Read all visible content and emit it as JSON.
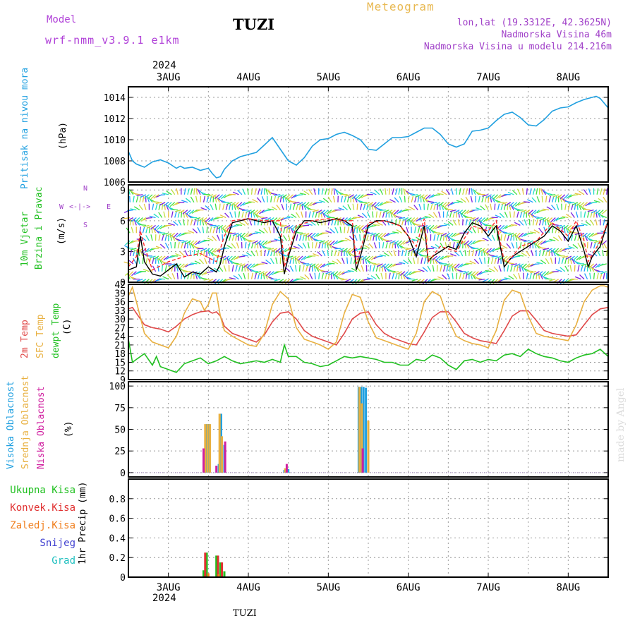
{
  "header": {
    "model_label": "Model",
    "model_name": "wrf-nmm_v3.9.1 e1km",
    "station": "TUZI",
    "product": "Meteogram",
    "coords": "lon,lat (19.3312E, 42.3625N)",
    "elevation": "Nadmorska Visina 46m",
    "model_elevation": "Nadmorska Visina u modelu 214.216m",
    "footer_station": "TUZI",
    "watermark": "made by Angel"
  },
  "colors": {
    "model": "#b040d8",
    "title": "#000000",
    "product": "#e8b850",
    "info": "#a040c8",
    "pressure": "#20a0e0",
    "temp2m": "#e04848",
    "sfc": "#e8b040",
    "dewpt": "#20c020",
    "wind_speed": "#000000",
    "gust": "#ff3030",
    "cloud_high": "#20a0e0",
    "cloud_mid": "#e8b040",
    "cloud_low": "#d020a0",
    "precip_total": "#20c020",
    "precip_conv": "#e03030",
    "precip_frozen": "#f08020",
    "snow": "#4040d0",
    "hail": "#20c0c0",
    "watermark": "#dcdcdc"
  },
  "time_axis": {
    "year": "2024",
    "days": [
      "3AUG",
      "4AUG",
      "5AUG",
      "6AUG",
      "7AUG",
      "8AUG"
    ],
    "range_days": [
      2.5,
      8.5
    ]
  },
  "chart_data": [
    {
      "type": "line",
      "name": "pressure",
      "ylabel": "Pritisak na nivou mora",
      "unit": "(hPa)",
      "ylim": [
        1006,
        1015
      ],
      "yticks": [
        1006,
        1008,
        1010,
        1012,
        1014
      ],
      "grid": true,
      "series": [
        {
          "x": [
            2.5,
            2.55,
            2.6,
            2.7,
            2.8,
            2.9,
            3.0,
            3.1,
            3.15,
            3.2,
            3.3,
            3.4,
            3.5,
            3.55,
            3.6,
            3.65,
            3.7,
            3.8,
            3.9,
            4.0,
            4.1,
            4.2,
            4.3,
            4.4,
            4.5,
            4.6,
            4.7,
            4.8,
            4.9,
            5.0,
            5.1,
            5.2,
            5.3,
            5.4,
            5.5,
            5.6,
            5.7,
            5.8,
            5.9,
            6.0,
            6.1,
            6.2,
            6.3,
            6.4,
            6.5,
            6.6,
            6.7,
            6.8,
            6.9,
            7.0,
            7.1,
            7.2,
            7.3,
            7.4,
            7.5,
            7.6,
            7.7,
            7.8,
            7.9,
            8.0,
            8.1,
            8.2,
            8.3,
            8.35,
            8.4,
            8.5
          ],
          "values": [
            1008.9,
            1008.0,
            1007.7,
            1007.4,
            1007.9,
            1008.1,
            1007.8,
            1007.3,
            1007.5,
            1007.3,
            1007.4,
            1007.1,
            1007.3,
            1006.8,
            1006.4,
            1006.5,
            1007.2,
            1008.0,
            1008.4,
            1008.6,
            1008.8,
            1009.5,
            1010.2,
            1009.1,
            1008.0,
            1007.6,
            1008.3,
            1009.4,
            1010.0,
            1010.1,
            1010.5,
            1010.7,
            1010.4,
            1010.0,
            1009.1,
            1009.0,
            1009.6,
            1010.2,
            1010.2,
            1010.3,
            1010.7,
            1011.1,
            1011.1,
            1010.5,
            1009.6,
            1009.3,
            1009.6,
            1010.8,
            1010.9,
            1011.1,
            1011.8,
            1012.4,
            1012.6,
            1012.1,
            1011.4,
            1011.3,
            1011.9,
            1012.7,
            1013.0,
            1013.1,
            1013.5,
            1013.8,
            1014.0,
            1014.1,
            1013.9,
            1013.0
          ]
        }
      ]
    },
    {
      "type": "line",
      "name": "wind",
      "ylabel": "10m Vjetar",
      "ylabel2": "Brzina i Pravac",
      "unit": "(m/s)",
      "ylim": [
        0,
        9.5
      ],
      "yticks": [
        0,
        3,
        6,
        9
      ],
      "grid": true,
      "compass": {
        "n": "N",
        "w": "W",
        "e": "E",
        "s": "S"
      },
      "series": [
        {
          "name": "speed",
          "x": [
            2.5,
            2.6,
            2.65,
            2.7,
            2.8,
            2.9,
            3.0,
            3.1,
            3.2,
            3.3,
            3.4,
            3.5,
            3.6,
            3.65,
            3.7,
            3.8,
            3.9,
            4.0,
            4.1,
            4.2,
            4.3,
            4.4,
            4.45,
            4.5,
            4.6,
            4.7,
            4.8,
            4.9,
            5.0,
            5.1,
            5.2,
            5.3,
            5.35,
            5.4,
            5.5,
            5.6,
            5.7,
            5.8,
            5.9,
            6.0,
            6.1,
            6.2,
            6.25,
            6.3,
            6.4,
            6.5,
            6.6,
            6.7,
            6.8,
            6.9,
            7.0,
            7.1,
            7.2,
            7.25,
            7.3,
            7.4,
            7.5,
            7.6,
            7.7,
            7.8,
            7.9,
            8.0,
            8.1,
            8.2,
            8.25,
            8.3,
            8.4,
            8.5
          ],
          "values": [
            1.2,
            1.5,
            4.5,
            2.0,
            0.8,
            0.6,
            1.2,
            1.8,
            0.5,
            1.0,
            0.8,
            1.5,
            1.0,
            1.8,
            3.5,
            5.8,
            6.0,
            6.2,
            6.0,
            5.8,
            6.0,
            4.5,
            0.8,
            2.5,
            5.0,
            6.0,
            6.0,
            5.8,
            6.0,
            6.2,
            6.0,
            5.5,
            1.2,
            2.5,
            5.5,
            6.0,
            6.0,
            5.8,
            5.5,
            4.5,
            2.5,
            5.5,
            2.0,
            2.5,
            3.0,
            3.5,
            3.2,
            4.8,
            5.8,
            5.5,
            4.5,
            5.5,
            1.5,
            2.0,
            2.5,
            3.0,
            3.5,
            4.0,
            4.5,
            5.5,
            5.0,
            4.0,
            5.5,
            3.0,
            1.5,
            2.5,
            3.5,
            6.0
          ]
        },
        {
          "name": "gust",
          "x": [
            2.5,
            2.6,
            2.65,
            2.7,
            2.8,
            3.0,
            3.2,
            3.4,
            3.6,
            3.7,
            3.8,
            4.0,
            4.2,
            4.4,
            4.45,
            4.6,
            4.8,
            5.0,
            5.2,
            5.3,
            5.35,
            5.5,
            5.7,
            5.9,
            6.1,
            6.2,
            6.25,
            6.4,
            6.6,
            6.8,
            7.0,
            7.1,
            7.2,
            7.25,
            7.4,
            7.6,
            7.8,
            8.0,
            8.1,
            8.2,
            8.25,
            8.4,
            8.5
          ],
          "values": [
            1.5,
            2.5,
            5.0,
            3.5,
            1.2,
            2.0,
            2.5,
            2.8,
            2.0,
            4.5,
            6.0,
            6.2,
            6.0,
            6.0,
            1.5,
            5.5,
            6.0,
            6.2,
            6.0,
            6.0,
            1.8,
            5.8,
            6.0,
            5.5,
            3.5,
            6.2,
            2.0,
            3.5,
            3.0,
            5.5,
            5.0,
            6.0,
            2.0,
            2.0,
            3.5,
            4.0,
            5.8,
            4.5,
            6.0,
            4.0,
            2.0,
            4.0,
            6.0
          ]
        }
      ]
    },
    {
      "type": "line",
      "name": "temperature",
      "ylabel": "2m Temp",
      "ylabel2": "SFC Temp",
      "ylabel3": "dewpt Temp",
      "unit": "(C)",
      "ylim": [
        9,
        42
      ],
      "yticks": [
        9,
        12,
        15,
        18,
        21,
        24,
        27,
        30,
        33,
        36,
        39,
        42
      ],
      "grid": true,
      "series": [
        {
          "name": "2m Temp",
          "x": [
            2.5,
            2.55,
            2.6,
            2.7,
            2.8,
            2.9,
            3.0,
            3.1,
            3.2,
            3.3,
            3.4,
            3.5,
            3.55,
            3.6,
            3.65,
            3.7,
            3.8,
            3.9,
            4.0,
            4.1,
            4.2,
            4.3,
            4.4,
            4.5,
            4.6,
            4.7,
            4.8,
            4.9,
            5.0,
            5.1,
            5.2,
            5.3,
            5.4,
            5.5,
            5.6,
            5.7,
            5.8,
            5.9,
            6.0,
            6.1,
            6.2,
            6.3,
            6.4,
            6.5,
            6.6,
            6.7,
            6.8,
            6.9,
            7.0,
            7.1,
            7.2,
            7.3,
            7.4,
            7.5,
            7.6,
            7.7,
            7.8,
            7.9,
            8.0,
            8.1,
            8.2,
            8.3,
            8.4,
            8.5
          ],
          "values": [
            33.5,
            34.0,
            32.0,
            28.0,
            27.0,
            26.5,
            25.5,
            27.5,
            30.0,
            31.5,
            32.5,
            32.8,
            32.0,
            32.5,
            31.0,
            27.5,
            25.0,
            24.0,
            23.0,
            22.0,
            24.5,
            29.0,
            32.0,
            32.5,
            30.0,
            26.0,
            24.0,
            23.0,
            22.0,
            21.0,
            25.0,
            30.0,
            32.0,
            32.5,
            28.0,
            25.0,
            23.5,
            22.5,
            21.5,
            21.0,
            25.5,
            30.5,
            32.5,
            32.5,
            29.0,
            25.0,
            23.5,
            22.5,
            22.0,
            21.5,
            26.0,
            31.0,
            32.8,
            32.8,
            29.5,
            26.0,
            25.0,
            24.5,
            24.0,
            24.5,
            28.0,
            31.5,
            33.5,
            34.0
          ]
        },
        {
          "name": "SFC Temp",
          "x": [
            2.5,
            2.55,
            2.6,
            2.7,
            2.8,
            2.9,
            3.0,
            3.1,
            3.2,
            3.3,
            3.4,
            3.45,
            3.5,
            3.55,
            3.6,
            3.65,
            3.7,
            3.8,
            3.9,
            4.0,
            4.1,
            4.2,
            4.3,
            4.4,
            4.5,
            4.6,
            4.7,
            4.8,
            4.9,
            5.0,
            5.1,
            5.2,
            5.3,
            5.4,
            5.5,
            5.6,
            5.7,
            5.8,
            5.9,
            6.0,
            6.1,
            6.2,
            6.3,
            6.4,
            6.5,
            6.6,
            6.7,
            6.8,
            6.9,
            7.0,
            7.1,
            7.2,
            7.3,
            7.4,
            7.5,
            7.6,
            7.7,
            7.8,
            7.9,
            8.0,
            8.1,
            8.2,
            8.3,
            8.4,
            8.45,
            8.5
          ],
          "values": [
            38.0,
            41.0,
            36.0,
            25.0,
            22.0,
            21.0,
            20.0,
            24.0,
            32.0,
            37.0,
            36.0,
            33.0,
            35.0,
            39.0,
            39.0,
            31.0,
            26.0,
            24.0,
            22.5,
            21.0,
            20.5,
            25.0,
            35.0,
            39.5,
            37.0,
            27.0,
            23.0,
            22.0,
            21.0,
            19.5,
            22.0,
            32.0,
            38.5,
            37.5,
            29.0,
            23.5,
            22.5,
            21.5,
            20.5,
            19.5,
            25.0,
            36.0,
            39.5,
            38.0,
            30.0,
            24.0,
            22.5,
            21.5,
            21.0,
            20.0,
            26.0,
            36.5,
            40.0,
            39.0,
            31.0,
            25.0,
            24.0,
            23.5,
            23.0,
            22.5,
            28.0,
            36.0,
            40.0,
            41.5,
            41.5,
            41.0
          ]
        },
        {
          "name": "dewpt Temp",
          "x": [
            2.5,
            2.55,
            2.6,
            2.7,
            2.8,
            2.85,
            2.9,
            3.0,
            3.1,
            3.2,
            3.3,
            3.4,
            3.5,
            3.6,
            3.7,
            3.8,
            3.9,
            4.0,
            4.1,
            4.2,
            4.3,
            4.4,
            4.45,
            4.5,
            4.6,
            4.7,
            4.8,
            4.9,
            5.0,
            5.1,
            5.2,
            5.3,
            5.4,
            5.5,
            5.6,
            5.7,
            5.8,
            5.9,
            6.0,
            6.1,
            6.2,
            6.3,
            6.4,
            6.5,
            6.6,
            6.7,
            6.8,
            6.9,
            7.0,
            7.1,
            7.2,
            7.3,
            7.4,
            7.5,
            7.6,
            7.7,
            7.8,
            7.9,
            8.0,
            8.1,
            8.2,
            8.3,
            8.4,
            8.5
          ],
          "values": [
            23.0,
            15.0,
            16.0,
            18.0,
            14.0,
            17.0,
            13.5,
            12.5,
            11.5,
            14.5,
            15.5,
            16.5,
            14.5,
            15.5,
            17.0,
            15.5,
            14.5,
            15.0,
            15.5,
            15.0,
            16.0,
            15.0,
            21.0,
            17.0,
            17.0,
            15.0,
            14.5,
            13.5,
            14.0,
            15.5,
            17.0,
            16.5,
            17.0,
            16.5,
            16.0,
            15.0,
            15.0,
            14.0,
            14.0,
            16.0,
            15.5,
            17.5,
            16.5,
            14.0,
            12.5,
            15.5,
            16.0,
            15.0,
            16.0,
            15.5,
            17.5,
            18.0,
            17.0,
            19.5,
            18.0,
            17.0,
            16.5,
            15.5,
            15.0,
            16.5,
            17.5,
            18.0,
            19.5,
            17.0
          ]
        }
      ]
    },
    {
      "type": "bar",
      "name": "cloud",
      "ylabel": "Visoka Oblacnost",
      "ylabel2": "Srednja Oblacnost",
      "ylabel3": "Niska Oblacnost",
      "unit": "(%)",
      "ylim": [
        -5,
        105
      ],
      "yticks": [
        0,
        25,
        50,
        75,
        100
      ],
      "grid": true,
      "series": [
        {
          "name": "Visoka Oblacnost",
          "x": [
            3.45,
            3.48,
            3.51,
            3.63,
            3.66,
            3.7,
            4.45,
            4.5,
            5.38,
            5.41,
            5.44,
            5.47
          ],
          "values": [
            26,
            56,
            56,
            10,
            68,
            32,
            3,
            4,
            99,
            99,
            99,
            98
          ]
        },
        {
          "name": "Srednja Oblacnost",
          "x": [
            3.46,
            3.49,
            3.52,
            3.64,
            3.67,
            4.46,
            5.39,
            5.42,
            5.5
          ],
          "values": [
            56,
            56,
            56,
            68,
            42,
            5,
            99,
            80,
            60
          ]
        },
        {
          "name": "Niska Oblacnost",
          "x": [
            3.44,
            3.6,
            3.71,
            4.48,
            5.43
          ],
          "values": [
            28,
            8,
            36,
            10,
            28
          ]
        }
      ]
    },
    {
      "type": "bar",
      "name": "precipitation",
      "ylabel": "1hr Precip (mm)",
      "ylim": [
        0,
        1.0
      ],
      "yticks": [
        0,
        0.2,
        0.4,
        0.6,
        0.8
      ],
      "grid": true,
      "legend": [
        "Ukupna Kisa",
        "Konvek.Kisa",
        "Zaledj.Kisa",
        "Snijeg",
        "Grad"
      ],
      "series": [
        {
          "name": "Ukupna Kisa",
          "x": [
            3.44,
            3.48,
            3.6,
            3.65,
            3.7
          ],
          "values": [
            0.07,
            0.25,
            0.22,
            0.15,
            0.06
          ]
        },
        {
          "name": "Konvek.Kisa",
          "x": [
            3.46,
            3.62,
            3.67
          ],
          "values": [
            0.25,
            0.22,
            0.15
          ]
        },
        {
          "name": "Zaledj.Kisa",
          "x": [
            3.5,
            3.63
          ],
          "values": [
            0.04,
            0.03
          ]
        }
      ]
    }
  ]
}
